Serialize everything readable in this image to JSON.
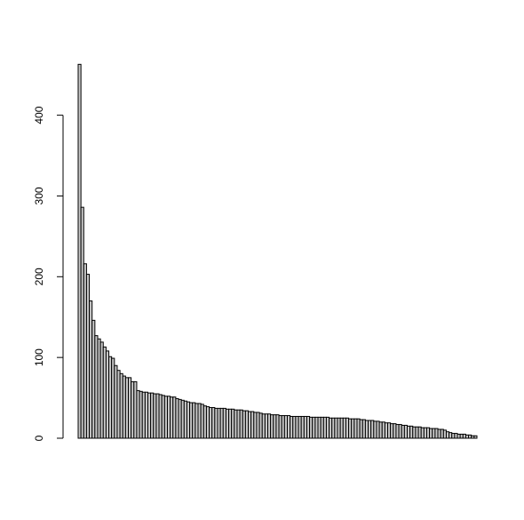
{
  "chart_data": {
    "type": "bar",
    "title": "",
    "xlabel": "",
    "ylabel": "",
    "ylim": [
      0,
      460
    ],
    "yticks": [
      0,
      100,
      200,
      300,
      400
    ],
    "ytick_labels": [
      "0",
      "100",
      "200",
      "300",
      "400"
    ],
    "grid": false,
    "legend": "none",
    "bar_fill": "#c8c8c8",
    "bar_stroke": "#000000",
    "values": [
      463,
      286,
      216,
      203,
      170,
      146,
      127,
      123,
      119,
      113,
      108,
      101,
      99,
      90,
      84,
      80,
      77,
      75,
      75,
      70,
      70,
      59,
      58,
      57,
      57,
      56,
      56,
      55,
      55,
      54,
      53,
      52,
      52,
      51,
      51,
      49,
      48,
      47,
      46,
      45,
      44,
      44,
      43,
      43,
      42,
      40,
      39,
      38,
      38,
      37,
      37,
      37,
      37,
      36,
      36,
      36,
      35,
      35,
      35,
      34,
      34,
      33,
      33,
      32,
      32,
      31,
      30,
      30,
      30,
      29,
      29,
      29,
      28,
      28,
      28,
      28,
      27,
      27,
      27,
      27,
      27,
      27,
      27,
      26,
      26,
      26,
      26,
      26,
      26,
      26,
      25,
      25,
      25,
      25,
      25,
      25,
      25,
      24,
      24,
      24,
      24,
      23,
      23,
      22,
      22,
      22,
      21,
      21,
      20,
      20,
      19,
      19,
      18,
      18,
      17,
      17,
      16,
      16,
      15,
      15,
      14,
      14,
      14,
      13,
      13,
      13,
      12,
      12,
      12,
      11,
      11,
      10,
      8,
      7,
      6,
      6,
      5,
      5,
      5,
      4,
      4,
      3,
      3
    ]
  }
}
